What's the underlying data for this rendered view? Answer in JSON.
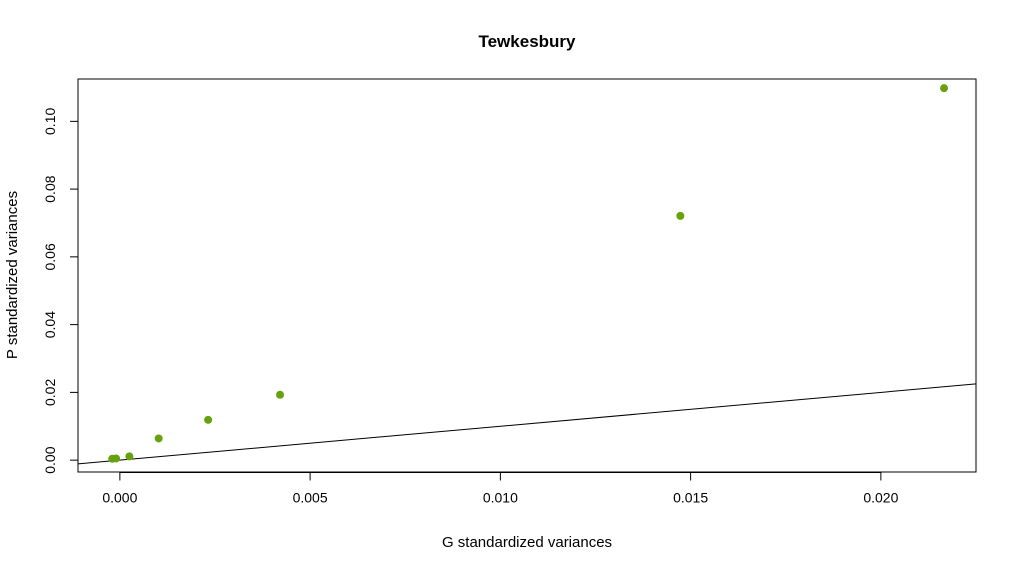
{
  "chart_data": {
    "type": "scatter",
    "title": "Tewkesbury",
    "xlabel": "G standardized variances",
    "ylabel": "P standardized variances",
    "xlim": [
      -0.0011,
      0.0225
    ],
    "ylim": [
      -0.0035,
      0.1125
    ],
    "xticks": [
      0.0,
      0.005,
      0.01,
      0.015,
      0.02
    ],
    "xtick_labels": [
      "0.000",
      "0.005",
      "0.010",
      "0.015",
      "0.020"
    ],
    "yticks": [
      0.0,
      0.02,
      0.04,
      0.06,
      0.08,
      0.1
    ],
    "ytick_labels": [
      "0.00",
      "0.02",
      "0.04",
      "0.06",
      "0.08",
      "0.10"
    ],
    "points": [
      {
        "x": -0.0002,
        "y": 0.0004
      },
      {
        "x": -0.0001,
        "y": 0.0005
      },
      {
        "x": 0.00025,
        "y": 0.0011
      },
      {
        "x": 0.00102,
        "y": 0.0064
      },
      {
        "x": 0.00232,
        "y": 0.0119
      },
      {
        "x": 0.00421,
        "y": 0.0193
      },
      {
        "x": 0.01473,
        "y": 0.0721
      },
      {
        "x": 0.02166,
        "y": 0.1098
      }
    ],
    "reference_line": {
      "slope": 1,
      "intercept": 0
    },
    "point_color": "#66a20e",
    "line_color": "#000000",
    "grid": false,
    "legend": "none"
  }
}
